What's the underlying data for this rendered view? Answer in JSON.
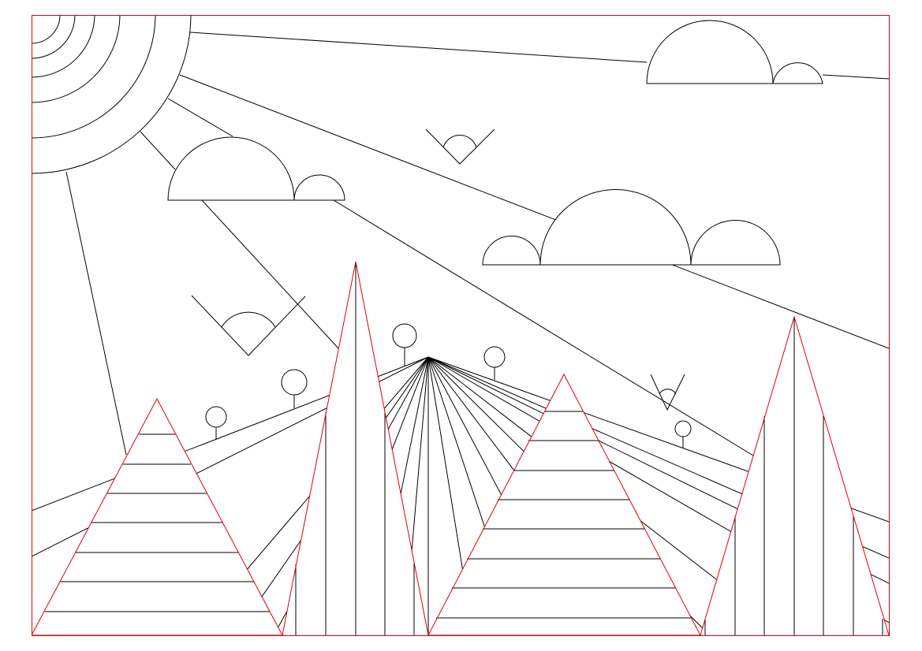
{
  "scene": {
    "colors": {
      "background": "#ffffff",
      "line": "#000000",
      "accent": "#e00000"
    },
    "elements": {
      "sun": "sun-icon",
      "clouds": "cloud-icon",
      "birds": "bird-icon",
      "trees": "tree-icon",
      "mountains": "mountain-icon"
    }
  }
}
